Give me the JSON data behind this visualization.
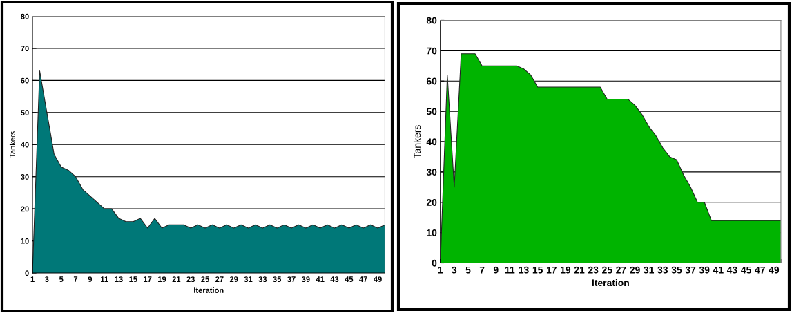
{
  "chart_data": [
    {
      "type": "area",
      "ylabel": "Tankers",
      "xlabel": "Iteration",
      "color": "#007878",
      "ylim": [
        0,
        80
      ],
      "yticks": [
        0,
        10,
        20,
        30,
        40,
        50,
        60,
        70,
        80
      ],
      "grid": "y",
      "categories": [
        "1",
        null,
        "3",
        null,
        "5",
        null,
        "7",
        null,
        "9",
        null,
        "11",
        null,
        "13",
        null,
        "15",
        null,
        "17",
        null,
        "19",
        null,
        "21",
        null,
        "23",
        null,
        "25",
        null,
        "27",
        null,
        "29",
        null,
        "31",
        null,
        "33",
        null,
        "35",
        null,
        "37",
        null,
        "39",
        null,
        "41",
        null,
        "43",
        null,
        "45",
        null,
        "47",
        null,
        "49",
        null
      ],
      "values": [
        0,
        63,
        50,
        37,
        33,
        32,
        30,
        26,
        24,
        22,
        20,
        20,
        17,
        16,
        16,
        17,
        14,
        17,
        14,
        15,
        15,
        15,
        14,
        15,
        14,
        15,
        14,
        15,
        14,
        15,
        14,
        15,
        14,
        15,
        14,
        15,
        14,
        15,
        14,
        15,
        14,
        15,
        14,
        15,
        14,
        15,
        14,
        15,
        14,
        15
      ]
    },
    {
      "type": "area",
      "ylabel": "Tankers",
      "xlabel": "Iteration",
      "color": "#00b400",
      "ylim": [
        0,
        80
      ],
      "yticks": [
        0,
        10,
        20,
        30,
        40,
        50,
        60,
        70,
        80
      ],
      "grid": "y",
      "categories": [
        "1",
        null,
        "3",
        null,
        "5",
        null,
        "7",
        null,
        "9",
        null,
        "11",
        null,
        "13",
        null,
        "15",
        null,
        "17",
        null,
        "19",
        null,
        "21",
        null,
        "23",
        null,
        "25",
        null,
        "27",
        null,
        "29",
        null,
        "31",
        null,
        "33",
        null,
        "35",
        null,
        "37",
        null,
        "39",
        null,
        "41",
        null,
        "43",
        null,
        "45",
        null,
        "47",
        null,
        "49",
        null
      ],
      "values": [
        0,
        62,
        25,
        69,
        69,
        69,
        65,
        65,
        65,
        65,
        65,
        65,
        64,
        62,
        58,
        58,
        58,
        58,
        58,
        58,
        58,
        58,
        58,
        58,
        54,
        54,
        54,
        54,
        52,
        49,
        45,
        42,
        38,
        35,
        34,
        29,
        25,
        20,
        20,
        14,
        14,
        14,
        14,
        14,
        14,
        14,
        14,
        14,
        14,
        14
      ]
    }
  ]
}
